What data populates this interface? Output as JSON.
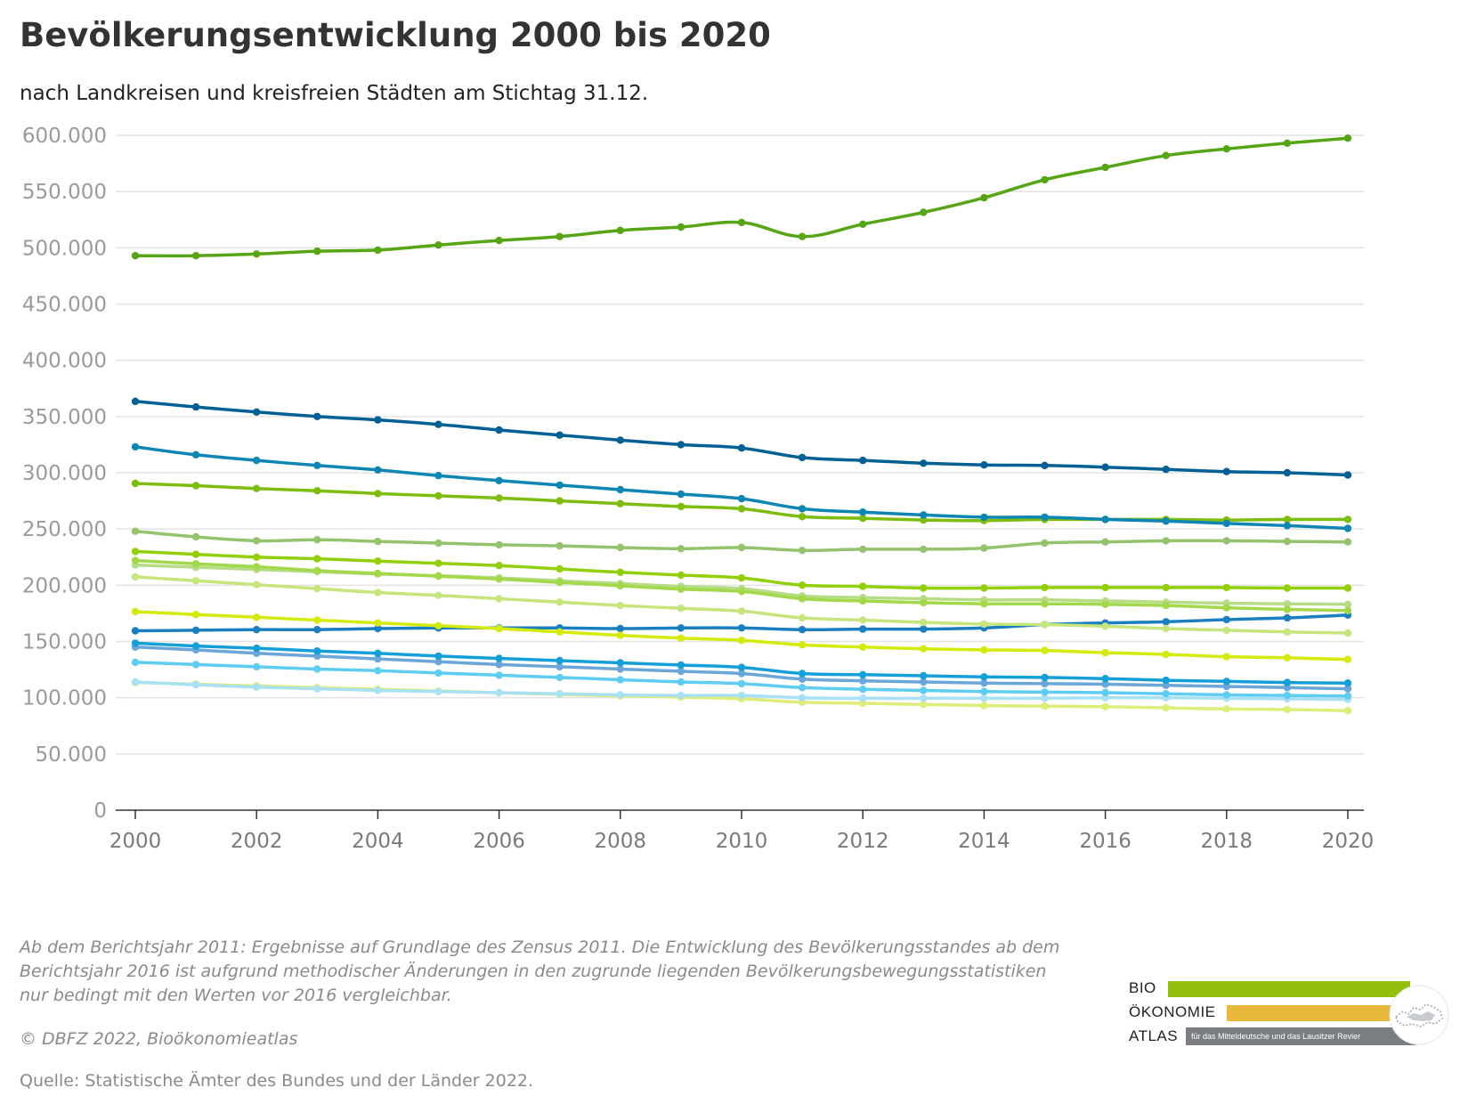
{
  "chart_data": {
    "type": "line",
    "title": "Bevölkerungsentwicklung 2000 bis 2020",
    "subtitle": "nach Landkreisen und kreisfreien Städten am Stichtag 31.12.",
    "xlabel": "",
    "ylabel": "",
    "xlim": [
      2000,
      2020
    ],
    "ylim": [
      0,
      600000
    ],
    "y_ticks": [
      0,
      50000,
      100000,
      150000,
      200000,
      250000,
      300000,
      350000,
      400000,
      450000,
      500000,
      550000,
      600000
    ],
    "y_tick_labels": [
      "0",
      "50.000",
      "100.000",
      "150.000",
      "200.000",
      "250.000",
      "300.000",
      "350.000",
      "400.000",
      "450.000",
      "500.000",
      "550.000",
      "600.000"
    ],
    "x_ticks": [
      2000,
      2002,
      2004,
      2006,
      2008,
      2010,
      2012,
      2014,
      2016,
      2018,
      2020
    ],
    "x_tick_labels": [
      "2000",
      "2002",
      "2004",
      "2006",
      "2008",
      "2010",
      "2012",
      "2014",
      "2016",
      "2018",
      "2020"
    ],
    "grid": true,
    "legend": "none",
    "x": [
      2000,
      2001,
      2002,
      2003,
      2004,
      2005,
      2006,
      2007,
      2008,
      2009,
      2010,
      2011,
      2012,
      2013,
      2014,
      2015,
      2016,
      2017,
      2018,
      2019,
      2020
    ],
    "series": [
      {
        "color": "#55a514",
        "values": [
          493000,
          493000,
          494500,
          497000,
          498000,
          502500,
          506500,
          510000,
          515500,
          518500,
          522500,
          510000,
          521000,
          531500,
          544500,
          560500,
          571500,
          582000,
          588000,
          593000,
          597500
        ]
      },
      {
        "color": "#005f94",
        "values": [
          363500,
          358500,
          354000,
          350000,
          347000,
          343000,
          338000,
          333500,
          329000,
          325000,
          322000,
          313500,
          311000,
          308500,
          307000,
          306500,
          305000,
          303000,
          301000,
          300000,
          298000
        ]
      },
      {
        "color": "#0d86b4",
        "values": [
          323000,
          316000,
          311000,
          306500,
          302500,
          297500,
          293000,
          289000,
          285000,
          281000,
          277000,
          268000,
          265000,
          262500,
          260500,
          260500,
          258500,
          257000,
          255000,
          253000,
          250500
        ]
      },
      {
        "color": "#7cbd0e",
        "values": [
          290500,
          288500,
          286000,
          284000,
          281500,
          279500,
          277500,
          275000,
          272500,
          270000,
          268000,
          261000,
          259500,
          258000,
          257500,
          258500,
          258500,
          258500,
          258000,
          258500,
          258500
        ]
      },
      {
        "color": "#95c36d",
        "values": [
          248000,
          243000,
          239500,
          240500,
          239000,
          237500,
          236000,
          235000,
          233500,
          232500,
          233500,
          231000,
          232000,
          232000,
          233000,
          237500,
          238500,
          239500,
          239500,
          239000,
          238500
        ]
      },
      {
        "color": "#92cf08",
        "values": [
          230000,
          227500,
          225000,
          223500,
          221500,
          219500,
          217500,
          214500,
          211500,
          209000,
          206500,
          200000,
          199000,
          197500,
          197500,
          198000,
          198000,
          198000,
          198000,
          197500,
          197500
        ]
      },
      {
        "color": "#a2d84a",
        "values": [
          222000,
          219000,
          216500,
          213000,
          210500,
          208000,
          205500,
          202500,
          199500,
          196500,
          194500,
          188000,
          186000,
          184500,
          183500,
          183500,
          183000,
          182000,
          180000,
          178500,
          177500
        ]
      },
      {
        "color": "#b6dc86",
        "values": [
          218000,
          216000,
          214000,
          212000,
          210000,
          208500,
          206500,
          204000,
          201500,
          199000,
          197000,
          190500,
          189000,
          188000,
          187000,
          187000,
          186000,
          185000,
          184000,
          183500,
          183000
        ]
      },
      {
        "color": "#c6e57c",
        "values": [
          207500,
          204000,
          200500,
          197000,
          193500,
          191000,
          188000,
          185000,
          182000,
          179500,
          177000,
          171000,
          169000,
          167000,
          165500,
          165000,
          163500,
          161500,
          160000,
          158500,
          157500
        ]
      },
      {
        "color": "#d4ea0b",
        "values": [
          176500,
          174000,
          171500,
          169000,
          166500,
          164000,
          161500,
          158500,
          155500,
          153000,
          151000,
          147000,
          145000,
          143500,
          142500,
          142000,
          140000,
          138500,
          136500,
          135500,
          134000
        ]
      },
      {
        "color": "#1a7fc0",
        "values": [
          159500,
          160000,
          160500,
          160500,
          161500,
          162000,
          162000,
          162000,
          161500,
          162000,
          162000,
          160500,
          161000,
          161000,
          162000,
          165000,
          166500,
          167500,
          169500,
          171000,
          173500
        ]
      },
      {
        "color": "#159fd8",
        "values": [
          148500,
          146000,
          144000,
          141500,
          139500,
          137000,
          135000,
          133000,
          131000,
          129000,
          127000,
          121500,
          120500,
          119500,
          118500,
          118000,
          117000,
          115500,
          114500,
          113500,
          113000
        ]
      },
      {
        "color": "#6aa6d8",
        "values": [
          145000,
          142500,
          139500,
          137000,
          134500,
          132000,
          129500,
          127500,
          125500,
          123500,
          121500,
          116500,
          115000,
          114000,
          113000,
          112500,
          112000,
          111000,
          110000,
          109000,
          108000
        ]
      },
      {
        "color": "#5fcdf2",
        "values": [
          131500,
          129500,
          127500,
          125500,
          124000,
          122000,
          120000,
          118000,
          116000,
          114000,
          112500,
          109000,
          107500,
          106500,
          105500,
          105000,
          104500,
          103500,
          102500,
          102000,
          101500
        ]
      },
      {
        "color": "#a8e0f4",
        "values": [
          114000,
          111500,
          109500,
          108000,
          106500,
          105500,
          104500,
          103500,
          102500,
          102000,
          102000,
          100000,
          99500,
          99500,
          99500,
          99500,
          100000,
          100000,
          99500,
          99000,
          98500
        ]
      },
      {
        "color": "#dded78",
        "values": [
          113500,
          112000,
          110500,
          109000,
          107500,
          106000,
          104500,
          103000,
          101500,
          100500,
          99000,
          96000,
          95000,
          94000,
          93000,
          92500,
          92000,
          91000,
          90000,
          89500,
          88500
        ]
      }
    ]
  },
  "footer": {
    "note": "Ab dem Berichtsjahr 2011: Ergebnisse auf Grundlage des Zensus 2011. Die Entwicklung des Bevölkerungsstandes ab dem Berichtsjahr 2016 ist aufgrund methodischer Änderungen in den zugrunde liegenden Bevölkerungsbewegungsstatistiken nur bedingt mit den Werten vor 2016 vergleichbar.",
    "copyright": "© DBFZ 2022, Bioökonomieatlas",
    "source": "Quelle: Statistische Ämter des Bundes und der Länder 2022."
  },
  "logo": {
    "word1": "BIO",
    "word2": "ÖKONOMIE",
    "word3": "ATLAS",
    "tagline": "für das Mitteldeutsche und das Lausitzer Revier",
    "colors": {
      "bar1": "#94bf0f",
      "bar2": "#e8b93c",
      "bar3": "#7a7e82"
    }
  }
}
